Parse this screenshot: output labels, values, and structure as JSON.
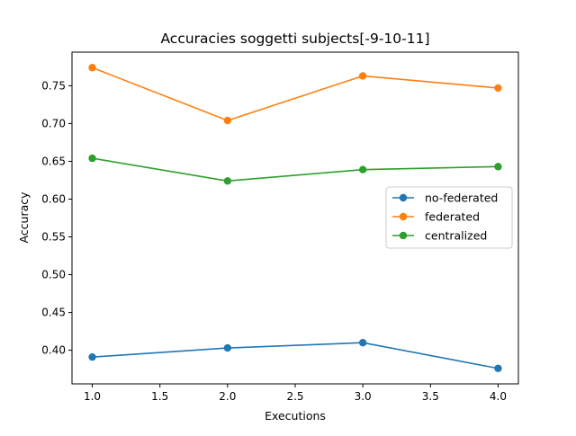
{
  "chart_data": {
    "type": "line",
    "title": "Accuracies soggetti subjects[-9-10-11]",
    "xlabel": "Executions",
    "ylabel": "Accuracy",
    "x": [
      1,
      2,
      3,
      4
    ],
    "xlim": [
      0.85,
      4.15
    ],
    "ylim": [
      0.3555,
      0.7945
    ],
    "xticks": [
      1.0,
      1.5,
      2.0,
      2.5,
      3.0,
      3.5,
      4.0
    ],
    "xtick_labels": [
      "1.0",
      "1.5",
      "2.0",
      "2.5",
      "3.0",
      "3.5",
      "4.0"
    ],
    "yticks": [
      0.4,
      0.45,
      0.5,
      0.55,
      0.6,
      0.65,
      0.7,
      0.75
    ],
    "ytick_labels": [
      "0.40",
      "0.45",
      "0.50",
      "0.55",
      "0.60",
      "0.65",
      "0.70",
      "0.75"
    ],
    "grid": false,
    "legend_position": "center-right",
    "series": [
      {
        "name": "no-federated",
        "color": "#1f77b4",
        "values": [
          0.391,
          0.403,
          0.41,
          0.376
        ]
      },
      {
        "name": "federated",
        "color": "#ff7f0e",
        "values": [
          0.774,
          0.704,
          0.763,
          0.747
        ]
      },
      {
        "name": "centralized",
        "color": "#2ca02c",
        "values": [
          0.654,
          0.624,
          0.639,
          0.643
        ]
      }
    ]
  }
}
